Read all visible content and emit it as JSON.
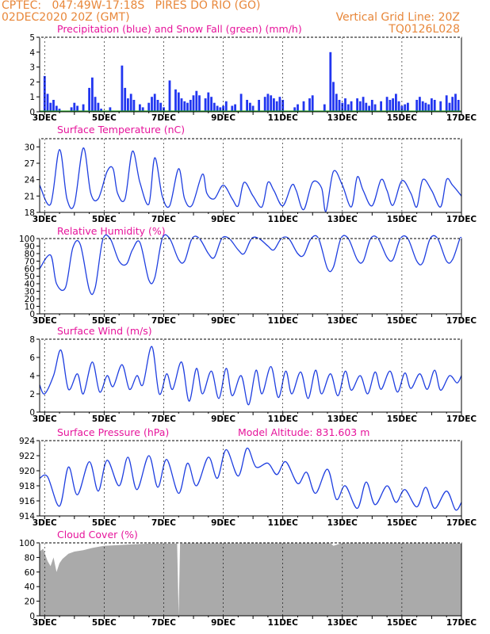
{
  "header": {
    "station": "CPTEC:   047:49W-17:18S   PIRES DO RIO (GO)",
    "datetime": "02DEC2020 20Z (GMT)",
    "grid_note": "Vertical Grid Line: 20Z",
    "model_id": "TQ0126L028"
  },
  "colors": {
    "header": "#e8873a",
    "titles": "#e6149b",
    "line": "#1f3fe0",
    "precip": "#2236f0",
    "snow": "#22b022",
    "cloud": "#aaaaaa",
    "grid": "#000000"
  },
  "x_axis": {
    "start_day": 2.833,
    "end_day": 17.0,
    "tick_days": [
      3,
      5,
      7,
      9,
      11,
      13,
      15,
      17
    ],
    "tick_labels": [
      "3DEC",
      "5DEC",
      "7DEC",
      "9DEC",
      "11DEC",
      "13DEC",
      "15DEC",
      "17DEC"
    ],
    "unit": "day of December 2020"
  },
  "chart_data": [
    {
      "type": "bar",
      "title": "Precipitation (blue) and Snow Fall (green) (mm/h)",
      "ylim": [
        0,
        5
      ],
      "yticks": [
        0,
        1,
        2,
        3,
        4,
        5
      ],
      "series": [
        {
          "name": "Precipitation",
          "x": [
            3.0,
            3.1,
            3.2,
            3.3,
            3.4,
            3.5,
            3.9,
            4.0,
            4.1,
            4.3,
            4.5,
            4.6,
            4.7,
            4.8,
            4.9,
            5.2,
            5.6,
            5.7,
            5.8,
            5.9,
            6.0,
            6.2,
            6.3,
            6.5,
            6.6,
            6.7,
            6.8,
            6.9,
            7.0,
            7.2,
            7.4,
            7.5,
            7.6,
            7.7,
            7.8,
            7.9,
            8.0,
            8.1,
            8.2,
            8.4,
            8.5,
            8.6,
            8.7,
            8.8,
            8.9,
            9.0,
            9.1,
            9.3,
            9.4,
            9.6,
            9.8,
            9.9,
            10.0,
            10.2,
            10.4,
            10.5,
            10.6,
            10.7,
            10.8,
            10.9,
            11.0,
            11.4,
            11.5,
            11.7,
            11.9,
            12.0,
            12.4,
            12.6,
            12.7,
            12.8,
            12.9,
            13.0,
            13.1,
            13.2,
            13.3,
            13.5,
            13.6,
            13.7,
            13.8,
            13.9,
            14.0,
            14.1,
            14.3,
            14.5,
            14.6,
            14.7,
            14.8,
            14.9,
            15.0,
            15.1,
            15.2,
            15.5,
            15.6,
            15.7,
            15.8,
            15.9,
            16.0,
            16.1,
            16.3,
            16.5,
            16.6,
            16.7,
            16.8,
            16.9
          ],
          "values": [
            2.4,
            1.2,
            0.6,
            0.8,
            0.4,
            0.2,
            0.3,
            0.6,
            0.4,
            0.5,
            1.6,
            2.3,
            1.0,
            0.6,
            0.2,
            0.3,
            3.1,
            1.6,
            0.9,
            1.2,
            0.8,
            0.5,
            0.3,
            0.6,
            1.0,
            1.2,
            0.8,
            0.6,
            0.3,
            2.1,
            1.5,
            1.3,
            0.9,
            0.7,
            0.6,
            0.8,
            1.1,
            1.4,
            1.1,
            0.9,
            1.3,
            1.0,
            0.6,
            0.4,
            0.3,
            0.4,
            0.7,
            0.4,
            0.5,
            1.2,
            0.8,
            0.6,
            0.4,
            0.8,
            1.0,
            1.2,
            1.1,
            0.9,
            0.7,
            1.0,
            0.8,
            0.3,
            0.5,
            0.7,
            0.9,
            1.1,
            0.5,
            4.0,
            2.0,
            1.2,
            0.8,
            0.6,
            0.9,
            0.5,
            0.7,
            0.9,
            0.7,
            1.0,
            0.6,
            0.4,
            0.8,
            0.5,
            0.7,
            1.0,
            0.8,
            0.9,
            1.2,
            0.7,
            0.4,
            0.5,
            0.6,
            0.8,
            1.0,
            0.7,
            0.6,
            0.5,
            0.9,
            0.8,
            0.7,
            1.1,
            0.6,
            1.0,
            1.2,
            0.8
          ]
        },
        {
          "name": "Snow Fall",
          "x": [
            2.833,
            17.0
          ],
          "values": [
            0,
            0
          ]
        }
      ]
    },
    {
      "type": "line",
      "title": "Surface Temperature (nC)",
      "ylim": [
        18,
        31.5
      ],
      "yticks": [
        18,
        21,
        24,
        27,
        30
      ],
      "series": [
        {
          "name": "Surface Temperature",
          "x": [
            2.833,
            3.2,
            3.5,
            3.75,
            4.0,
            4.3,
            4.55,
            4.8,
            5.1,
            5.3,
            5.45,
            5.7,
            5.95,
            6.2,
            6.5,
            6.7,
            6.95,
            7.2,
            7.5,
            7.7,
            7.95,
            8.3,
            8.45,
            8.7,
            9.0,
            9.3,
            9.5,
            9.7,
            10.0,
            10.3,
            10.5,
            10.7,
            11.0,
            11.3,
            11.45,
            11.7,
            12.0,
            12.3,
            12.45,
            12.7,
            13.0,
            13.3,
            13.5,
            13.7,
            14.0,
            14.3,
            14.5,
            14.7,
            15.0,
            15.3,
            15.5,
            15.7,
            16.0,
            16.3,
            16.5,
            16.7,
            17.0
          ],
          "values": [
            23,
            19.5,
            29.5,
            20.5,
            19.5,
            29.8,
            21.5,
            20.5,
            25.5,
            26.0,
            21.5,
            20.5,
            29.2,
            23.5,
            19.5,
            28.0,
            21.0,
            19.2,
            26.0,
            20.5,
            19.3,
            25.0,
            21.5,
            20.5,
            23.0,
            20.5,
            19.2,
            23.5,
            21.0,
            19.0,
            23.5,
            22.0,
            19.2,
            23.0,
            22.0,
            18.5,
            23.5,
            22.5,
            18.2,
            25.5,
            23.0,
            19.0,
            24.5,
            22.0,
            19.2,
            24.0,
            22.0,
            19.3,
            23.8,
            21.5,
            19.0,
            24.0,
            22.0,
            19.0,
            24.0,
            23.0,
            21.0
          ]
        }
      ]
    },
    {
      "type": "line",
      "title": "Relative Humidity (%)",
      "ylim": [
        0,
        100
      ],
      "yticks": [
        0,
        10,
        20,
        30,
        40,
        50,
        60,
        70,
        80,
        90,
        100
      ],
      "series": [
        {
          "name": "Relative Humidity",
          "x": [
            2.833,
            3.2,
            3.4,
            3.7,
            3.95,
            4.2,
            4.5,
            4.7,
            4.95,
            5.2,
            5.5,
            5.75,
            5.95,
            6.2,
            6.5,
            6.7,
            6.95,
            7.2,
            7.5,
            7.7,
            7.95,
            8.2,
            8.5,
            8.7,
            8.95,
            9.2,
            9.5,
            9.7,
            9.95,
            10.2,
            10.5,
            10.7,
            10.95,
            11.2,
            11.5,
            11.7,
            11.95,
            12.2,
            12.5,
            12.7,
            12.95,
            13.2,
            13.5,
            13.7,
            13.95,
            14.2,
            14.5,
            14.7,
            14.95,
            15.2,
            15.5,
            15.7,
            15.95,
            16.2,
            16.5,
            16.7,
            16.95,
            17.0
          ],
          "values": [
            60,
            78,
            40,
            35,
            88,
            92,
            32,
            35,
            98,
            100,
            70,
            66,
            85,
            95,
            45,
            48,
            100,
            100,
            72,
            70,
            100,
            100,
            80,
            75,
            100,
            100,
            85,
            80,
            100,
            100,
            90,
            85,
            100,
            100,
            80,
            78,
            100,
            100,
            60,
            62,
            100,
            100,
            72,
            70,
            100,
            100,
            75,
            72,
            100,
            100,
            70,
            68,
            100,
            100,
            70,
            72,
            100,
            98
          ]
        }
      ]
    },
    {
      "type": "line",
      "title": "Surface Wind (m/s)",
      "ylim": [
        0,
        8
      ],
      "yticks": [
        0,
        2,
        4,
        6,
        8
      ],
      "series": [
        {
          "name": "Surface Wind",
          "x": [
            2.833,
            3.0,
            3.3,
            3.55,
            3.8,
            4.1,
            4.3,
            4.6,
            4.85,
            5.1,
            5.3,
            5.6,
            5.85,
            6.1,
            6.3,
            6.6,
            6.85,
            7.1,
            7.3,
            7.6,
            7.85,
            8.1,
            8.3,
            8.6,
            8.85,
            9.1,
            9.3,
            9.6,
            9.85,
            10.1,
            10.3,
            10.6,
            10.85,
            11.1,
            11.3,
            11.6,
            11.85,
            12.1,
            12.3,
            12.6,
            12.85,
            13.1,
            13.3,
            13.6,
            13.85,
            14.1,
            14.3,
            14.6,
            14.85,
            15.1,
            15.3,
            15.6,
            15.85,
            16.1,
            16.3,
            16.6,
            16.85,
            17.0
          ],
          "values": [
            3.0,
            2.0,
            4.0,
            6.8,
            2.5,
            4.2,
            2.0,
            5.5,
            2.2,
            4.0,
            2.8,
            5.2,
            2.5,
            4.0,
            3.0,
            7.2,
            2.0,
            4.2,
            2.5,
            5.5,
            1.2,
            4.8,
            2.0,
            4.5,
            1.5,
            4.8,
            1.8,
            4.0,
            0.8,
            4.6,
            2.0,
            5.0,
            1.6,
            4.5,
            2.0,
            4.4,
            1.5,
            4.6,
            2.0,
            4.2,
            1.8,
            4.5,
            2.4,
            4.0,
            2.0,
            4.4,
            2.5,
            4.5,
            2.2,
            4.3,
            2.6,
            4.2,
            2.5,
            4.6,
            2.4,
            4.0,
            3.2,
            4.0
          ]
        }
      ]
    },
    {
      "type": "line",
      "title": "Surface Pressure (hPa)",
      "subtitle": "Model Altitude: 831.603 m",
      "ylim": [
        914,
        924
      ],
      "yticks": [
        914,
        916,
        918,
        920,
        922,
        924
      ],
      "series": [
        {
          "name": "Surface Pressure",
          "x": [
            2.833,
            3.1,
            3.5,
            3.8,
            4.1,
            4.5,
            4.8,
            5.1,
            5.5,
            5.8,
            6.1,
            6.5,
            6.8,
            7.1,
            7.5,
            7.8,
            8.1,
            8.5,
            8.8,
            9.1,
            9.5,
            9.8,
            10.1,
            10.5,
            10.8,
            11.1,
            11.5,
            11.8,
            12.1,
            12.5,
            12.8,
            13.1,
            13.5,
            13.8,
            14.1,
            14.5,
            14.8,
            15.1,
            15.5,
            15.8,
            16.1,
            16.5,
            16.8,
            17.0
          ],
          "values": [
            919.0,
            919.2,
            915.3,
            920.5,
            916.8,
            921.2,
            917.3,
            921.4,
            918.0,
            921.8,
            917.5,
            922.0,
            917.8,
            921.5,
            917.0,
            921.0,
            918.0,
            921.8,
            919.0,
            922.8,
            919.3,
            923.0,
            920.5,
            921.0,
            919.5,
            921.2,
            918.3,
            919.8,
            917.0,
            920.2,
            916.2,
            918.0,
            915.0,
            918.5,
            915.5,
            918.0,
            915.8,
            917.5,
            915.2,
            917.8,
            915.0,
            917.3,
            914.8,
            915.8
          ]
        }
      ]
    },
    {
      "type": "area",
      "title": "Cloud Cover (%)",
      "ylim": [
        0,
        100
      ],
      "yticks": [
        0,
        20,
        40,
        60,
        80,
        100
      ],
      "series": [
        {
          "name": "Cloud Cover",
          "x": [
            2.833,
            2.95,
            3.1,
            3.2,
            3.3,
            3.4,
            3.5,
            3.6,
            3.8,
            4.0,
            4.3,
            4.6,
            5.0,
            5.5,
            6.0,
            6.5,
            7.0,
            7.45,
            7.5,
            7.55,
            8.0,
            9.0,
            10.0,
            11.0,
            12.0,
            12.6,
            12.7,
            13.0,
            14.0,
            15.0,
            16.0,
            17.0
          ],
          "values": [
            88,
            92,
            75,
            68,
            80,
            60,
            72,
            78,
            85,
            88,
            90,
            93,
            96,
            97,
            98,
            99,
            99,
            99,
            0,
            99,
            100,
            100,
            100,
            100,
            100,
            100,
            96,
            100,
            100,
            100,
            100,
            100
          ]
        }
      ]
    }
  ]
}
